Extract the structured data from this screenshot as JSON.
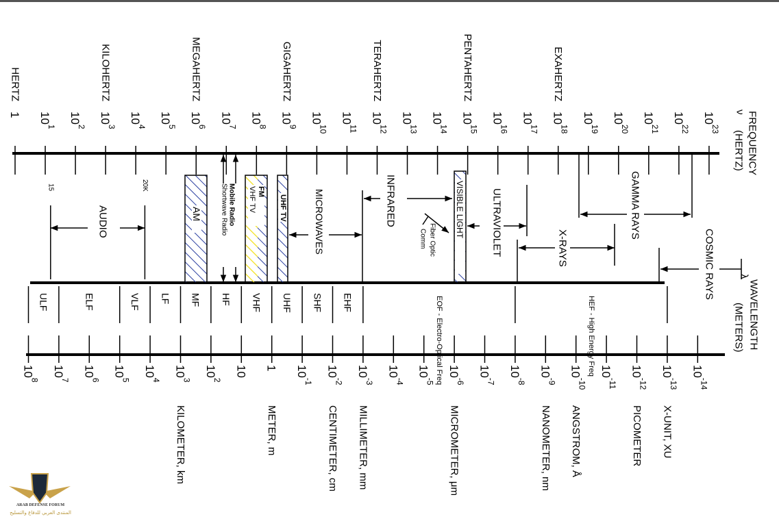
{
  "colors": {
    "line": "#000000",
    "hatch_blue": "#2b3fa0",
    "hatch_yellow": "#f2e01a",
    "logo_gold": "#c9a24a",
    "logo_dark": "#1d2a3a"
  },
  "frequency_axis": {
    "symbol": "ν",
    "label": "FREQUENCY",
    "unit": "(HERTZ)",
    "ticks": [
      {
        "base": "1",
        "exp": ""
      },
      {
        "base": "10",
        "exp": "1"
      },
      {
        "base": "10",
        "exp": "2"
      },
      {
        "base": "10",
        "exp": "3"
      },
      {
        "base": "10",
        "exp": "4"
      },
      {
        "base": "10",
        "exp": "5"
      },
      {
        "base": "10",
        "exp": "6"
      },
      {
        "base": "10",
        "exp": "7"
      },
      {
        "base": "10",
        "exp": "8"
      },
      {
        "base": "10",
        "exp": "9"
      },
      {
        "base": "10",
        "exp": "10"
      },
      {
        "base": "10",
        "exp": "11"
      },
      {
        "base": "10",
        "exp": "12"
      },
      {
        "base": "10",
        "exp": "13"
      },
      {
        "base": "10",
        "exp": "14"
      },
      {
        "base": "10",
        "exp": "15"
      },
      {
        "base": "10",
        "exp": "16"
      },
      {
        "base": "10",
        "exp": "17"
      },
      {
        "base": "10",
        "exp": "18"
      },
      {
        "base": "10",
        "exp": "19"
      },
      {
        "base": "10",
        "exp": "20"
      },
      {
        "base": "10",
        "exp": "21"
      },
      {
        "base": "10",
        "exp": "22"
      },
      {
        "base": "10",
        "exp": "23"
      }
    ],
    "units": [
      {
        "label": "HERTZ",
        "exponent": 0
      },
      {
        "label": "KILOHERTZ",
        "exponent": 3
      },
      {
        "label": "MEGAHERTZ",
        "exponent": 6
      },
      {
        "label": "GIGAHERTZ",
        "exponent": 9
      },
      {
        "label": "TERAHERTZ",
        "exponent": 12
      },
      {
        "label": "PENTAHERTZ",
        "exponent": 15
      },
      {
        "label": "EXAHERTZ",
        "exponent": 18
      }
    ]
  },
  "wavelength_axis": {
    "symbol": "λ",
    "label": "WAVELENGTH",
    "unit": "(METERS)",
    "ticks": [
      {
        "base": "10",
        "exp": "8"
      },
      {
        "base": "10",
        "exp": "7"
      },
      {
        "base": "10",
        "exp": "6"
      },
      {
        "base": "10",
        "exp": "5"
      },
      {
        "base": "10",
        "exp": "4"
      },
      {
        "base": "10",
        "exp": "3"
      },
      {
        "base": "10",
        "exp": "2"
      },
      {
        "base": "10",
        "exp": ""
      },
      {
        "base": "1",
        "exp": ""
      },
      {
        "base": "10",
        "exp": "-1"
      },
      {
        "base": "10",
        "exp": "-2"
      },
      {
        "base": "10",
        "exp": "-3"
      },
      {
        "base": "10",
        "exp": "-4"
      },
      {
        "base": "10",
        "exp": "-5"
      },
      {
        "base": "10",
        "exp": "-6"
      },
      {
        "base": "10",
        "exp": "-7"
      },
      {
        "base": "10",
        "exp": "-8"
      },
      {
        "base": "10",
        "exp": "-9"
      },
      {
        "base": "10",
        "exp": "-10"
      },
      {
        "base": "10",
        "exp": "-11"
      },
      {
        "base": "10",
        "exp": "-12"
      },
      {
        "base": "10",
        "exp": "-13"
      },
      {
        "base": "10",
        "exp": "-14"
      }
    ],
    "units": [
      {
        "label": "KILOMETER, km",
        "exponent": 3
      },
      {
        "label": "METER, m",
        "exponent": 0
      },
      {
        "label": "CENTIMETER, cm",
        "exponent": -2
      },
      {
        "label": "MILLIMETER, mm",
        "exponent": -3
      },
      {
        "label": "MICROMETER, μm",
        "exponent": -6
      },
      {
        "label": "NANOMETER, nm",
        "exponent": -9
      },
      {
        "label": "ANGSTROM, Å",
        "exponent": -10
      },
      {
        "label": "PICOMETER",
        "exponent": -12
      },
      {
        "label": "X-UNIT, XU",
        "exponent": -13
      }
    ]
  },
  "bands": [
    {
      "label": "ULF",
      "from": 8,
      "to": 7
    },
    {
      "label": "ELF",
      "from": 7,
      "to": 5
    },
    {
      "label": "VLF",
      "from": 5,
      "to": 4
    },
    {
      "label": "LF",
      "from": 4,
      "to": 3
    },
    {
      "label": "MF",
      "from": 3,
      "to": 2
    },
    {
      "label": "HF",
      "from": 2,
      "to": 1
    },
    {
      "label": "VHF",
      "from": 1,
      "to": 0
    },
    {
      "label": "UHF",
      "from": 0,
      "to": -1
    },
    {
      "label": "SHF",
      "from": -1,
      "to": -2
    },
    {
      "label": "EHF",
      "from": -2,
      "to": -3
    },
    {
      "label": "EOF - Electro-Optical Freq",
      "from": -3,
      "to": -8
    },
    {
      "label": "HEF - High Energy Freq",
      "from": -8,
      "to": -13
    }
  ],
  "regions": {
    "audio": {
      "label": "AUDIO",
      "low": "15",
      "high": "20K"
    },
    "am": {
      "label": "AM"
    },
    "mobile_radio": {
      "label": "Mobile Radio"
    },
    "shortwave_radio": {
      "label": "Shortwave Radio"
    },
    "fm": {
      "label": "FM"
    },
    "vhf_tv": {
      "label": "VHF TV"
    },
    "uhf_tv": {
      "label": "UHF TV"
    },
    "microwaves": {
      "label": "MICROWAVES"
    },
    "infrared": {
      "label": "INFRARED"
    },
    "fiber_optic": {
      "label1": "Fiber Optic",
      "label2": "Comm"
    },
    "visible_light": {
      "label": "VISIBLE LIGHT"
    },
    "ultraviolet": {
      "label": "ULTRAVIOLET"
    },
    "x_rays": {
      "label": "X-RAYS"
    },
    "gamma_rays": {
      "label": "GAMMA RAYS"
    },
    "cosmic_rays": {
      "label": "COSMIC RAYS"
    }
  },
  "watermark": {
    "monogram": "DA",
    "name": "ARAB DEFENSE FORUM",
    "arabic": "المنتدى العربي للدفاع والتسليح"
  }
}
